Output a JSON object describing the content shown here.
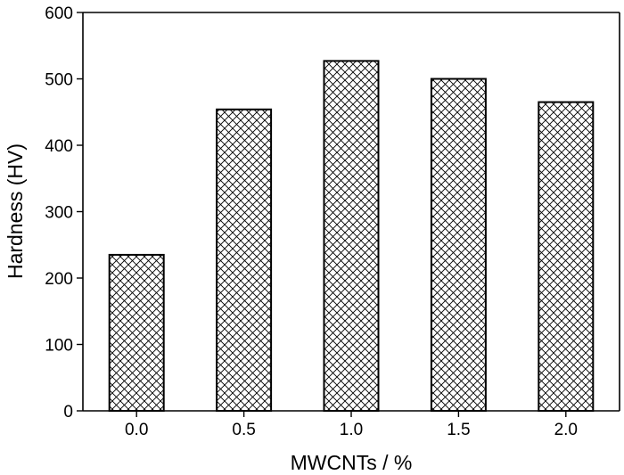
{
  "chart_data": {
    "type": "bar",
    "title": "",
    "xlabel": "MWCNTs / %",
    "ylabel": "Hardness (HV)",
    "categories": [
      "0.0",
      "0.5",
      "1.0",
      "1.5",
      "2.0"
    ],
    "values": [
      235,
      454,
      527,
      500,
      465
    ],
    "ylim": [
      0,
      600
    ],
    "yticks": [
      "0",
      "100",
      "200",
      "300",
      "400",
      "500",
      "600"
    ],
    "bar_fill": "crosshatch",
    "bar_color": "#ffffff",
    "bar_edge_color": "#000000",
    "grid": false,
    "legend": "none"
  }
}
